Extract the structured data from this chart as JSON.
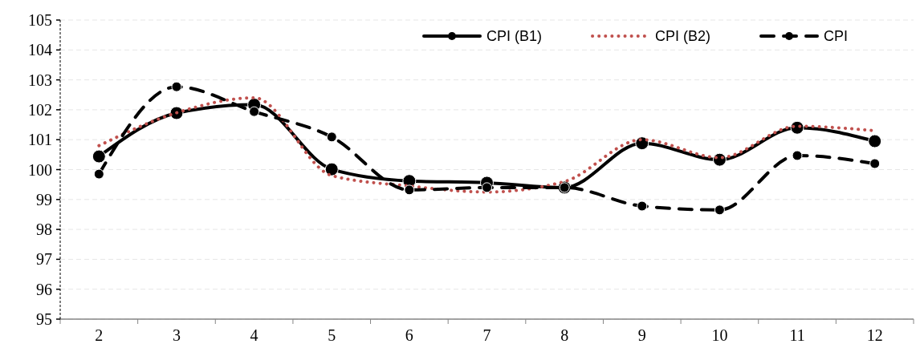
{
  "chart_data": {
    "type": "line",
    "categories": [
      "2",
      "3",
      "4",
      "5",
      "6",
      "7",
      "8",
      "9",
      "10",
      "11",
      "12"
    ],
    "ylim": [
      95,
      105
    ],
    "yticks": [
      95,
      96,
      97,
      98,
      99,
      100,
      101,
      102,
      103,
      104,
      105
    ],
    "grid": "y",
    "legend": "top right",
    "series": [
      {
        "name": "CPI (B1)",
        "color": "#000000",
        "line_style": "solid",
        "marker": "circle",
        "values": [
          100.44,
          101.89,
          102.17,
          100.01,
          99.62,
          99.56,
          99.4,
          100.88,
          100.33,
          101.4,
          100.95
        ]
      },
      {
        "name": "CPI (B2)",
        "color": "#c0504d",
        "line_style": "dotted",
        "marker": "none",
        "values": [
          100.8,
          101.9,
          102.4,
          99.8,
          99.45,
          99.25,
          99.6,
          101.0,
          100.4,
          101.45,
          101.3
        ]
      },
      {
        "name": "CPI",
        "color": "#000000",
        "line_style": "dashed",
        "marker": "circle",
        "values": [
          99.85,
          102.77,
          101.94,
          101.09,
          99.32,
          99.4,
          99.4,
          98.78,
          98.65,
          100.47,
          100.2
        ]
      }
    ]
  }
}
